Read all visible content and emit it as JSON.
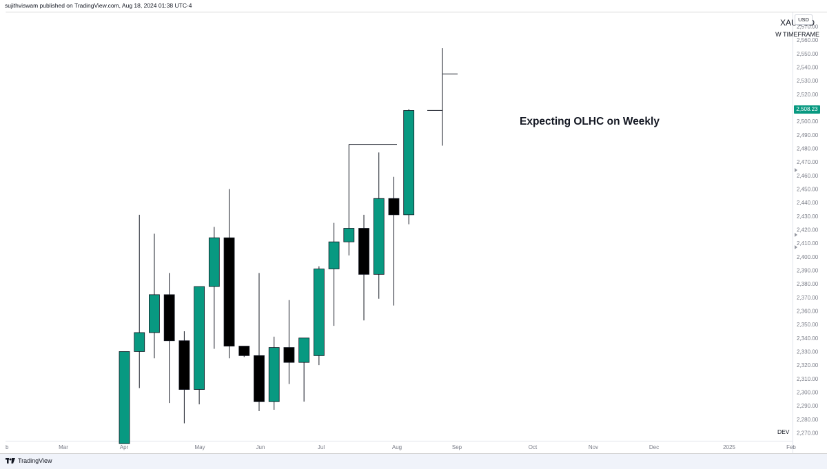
{
  "header": {
    "publish_line": "sujithviswam published on TradingView.com, Aug 18, 2024 01:38 UTC-4"
  },
  "symbol": "XAUUSD",
  "timeframe_label": "W TIMEFRAME",
  "currency_label": "USD",
  "current_price_label": "2,508.23",
  "annotation_text": "Expecting OLHC on Weekly",
  "dev_label": "DEV",
  "footer": {
    "brand": "TradingView"
  },
  "colors": {
    "bull": "#089981",
    "bear": "#000000",
    "projection": "#131722",
    "price_tag": "#089981"
  },
  "chart_data": {
    "type": "candlestick",
    "title": "XAUUSD",
    "subtitle": "W TIMEFRAME",
    "y_axis": {
      "range": [
        2262,
        2576
      ],
      "ticks": [
        2270,
        2280,
        2290,
        2300,
        2310,
        2320,
        2330,
        2340,
        2350,
        2360,
        2370,
        2380,
        2390,
        2400,
        2410,
        2420,
        2430,
        2440,
        2450,
        2460,
        2470,
        2480,
        2490,
        2500,
        2510,
        2520,
        2530,
        2540,
        2550,
        2560,
        2570
      ],
      "tick_labels": [
        "2,270.00",
        "2,280.00",
        "2,290.00",
        "2,300.00",
        "2,310.00",
        "2,320.00",
        "2,330.00",
        "2,340.00",
        "2,350.00",
        "2,360.00",
        "2,370.00",
        "2,380.00",
        "2,390.00",
        "2,400.00",
        "2,410.00",
        "2,420.00",
        "2,430.00",
        "2,440.00",
        "2,450.00",
        "2,460.00",
        "2,470.00",
        "2,480.00",
        "2,490.00",
        "2,500.00",
        "2,510.00",
        "2,520.00",
        "2,530.00",
        "2,540.00",
        "2,550.00",
        "2,560.00",
        "2,570.00"
      ],
      "current_price": 2508.23
    },
    "x_axis": {
      "labels": [
        "b",
        "Mar",
        "Apr",
        "May",
        "Jun",
        "Jul",
        "Aug",
        "Sep",
        "Oct",
        "Nov",
        "Dec",
        "2025",
        "Feb"
      ]
    },
    "candles": [
      {
        "week": "2024-03-31",
        "open": 2262,
        "high": 2330,
        "low": 2262,
        "close": 2330
      },
      {
        "week": "2024-04-07",
        "open": 2330,
        "high": 2431,
        "low": 2303,
        "close": 2344
      },
      {
        "week": "2024-04-14",
        "open": 2344,
        "high": 2417,
        "low": 2325,
        "close": 2372
      },
      {
        "week": "2024-04-21",
        "open": 2372,
        "high": 2388,
        "low": 2292,
        "close": 2338
      },
      {
        "week": "2024-04-28",
        "open": 2338,
        "high": 2345,
        "low": 2277,
        "close": 2302
      },
      {
        "week": "2024-05-05",
        "open": 2302,
        "high": 2378,
        "low": 2291,
        "close": 2378
      },
      {
        "week": "2024-05-12",
        "open": 2378,
        "high": 2422,
        "low": 2332,
        "close": 2414
      },
      {
        "week": "2024-05-19",
        "open": 2414,
        "high": 2450,
        "low": 2325,
        "close": 2334
      },
      {
        "week": "2024-05-26",
        "open": 2334,
        "high": 2334,
        "low": 2326,
        "close": 2327
      },
      {
        "week": "2024-06-02",
        "open": 2327,
        "high": 2388,
        "low": 2286,
        "close": 2293
      },
      {
        "week": "2024-06-09",
        "open": 2293,
        "high": 2341,
        "low": 2287,
        "close": 2333
      },
      {
        "week": "2024-06-16",
        "open": 2333,
        "high": 2368,
        "low": 2306,
        "close": 2322
      },
      {
        "week": "2024-06-23",
        "open": 2322,
        "high": 2340,
        "low": 2293,
        "close": 2340
      },
      {
        "week": "2024-06-30",
        "open": 2327,
        "high": 2393,
        "low": 2320,
        "close": 2391
      },
      {
        "week": "2024-07-07",
        "open": 2391,
        "high": 2425,
        "low": 2349,
        "close": 2411
      },
      {
        "week": "2024-07-14",
        "open": 2411,
        "high": 2483,
        "low": 2401,
        "close": 2421
      },
      {
        "week": "2024-07-21",
        "open": 2421,
        "high": 2431,
        "low": 2353,
        "close": 2387
      },
      {
        "week": "2024-07-28",
        "open": 2387,
        "high": 2477,
        "low": 2369,
        "close": 2443
      },
      {
        "week": "2024-08-04",
        "open": 2443,
        "high": 2459,
        "low": 2364,
        "close": 2431
      },
      {
        "week": "2024-08-11",
        "open": 2431,
        "high": 2509,
        "low": 2424,
        "close": 2508
      }
    ],
    "projection": {
      "label": "OLHC",
      "open": 2508,
      "low": 2482,
      "high": 2554,
      "close": 2535,
      "reference_level": 2483
    }
  }
}
